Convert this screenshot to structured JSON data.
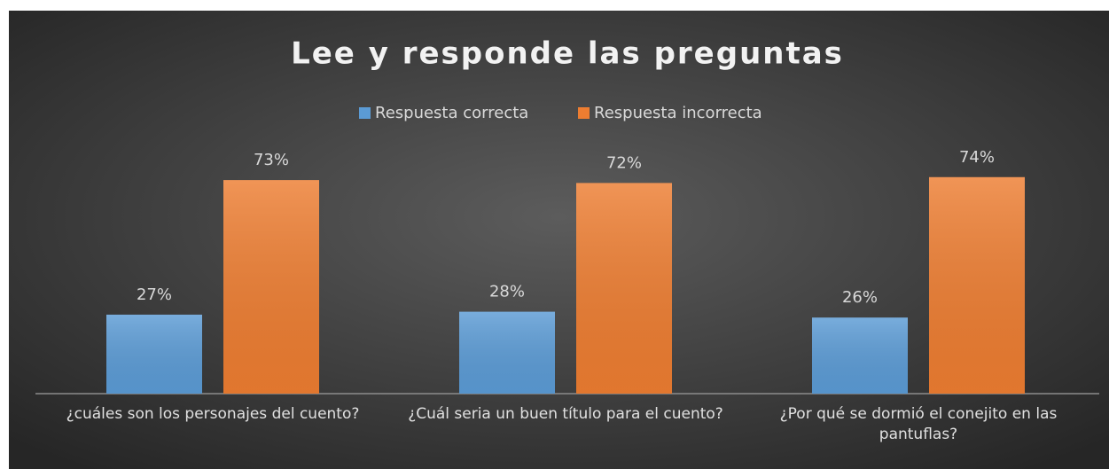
{
  "chart_data": {
    "type": "bar",
    "title": "Lee y responde las preguntas",
    "categories": [
      "¿cuáles son los personajes del cuento?",
      "¿Cuál seria un buen título para el cuento?",
      "¿Por qué se dormió el conejito en las pantuflas?"
    ],
    "series": [
      {
        "name": "Respuesta correcta",
        "color": "#5b9bd5",
        "values": [
          27,
          28,
          26
        ],
        "value_labels": [
          "27%",
          "28%",
          "26%"
        ]
      },
      {
        "name": "Respuesta incorrecta",
        "color": "#ed7d31",
        "values": [
          73,
          72,
          74
        ],
        "value_labels": [
          "73%",
          "72%",
          "74%"
        ]
      }
    ],
    "legend": "top"
  }
}
